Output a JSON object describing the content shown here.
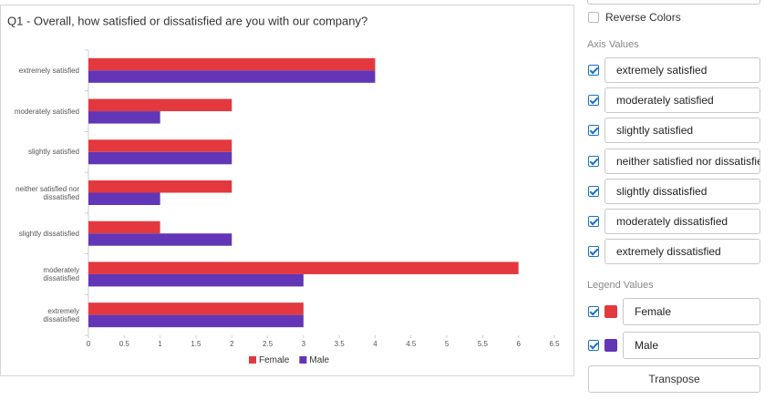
{
  "chart_data": {
    "type": "hbar",
    "title": "Q1 - Overall, how satisfied or dissatisfied are you with our company?",
    "categories": [
      "extremely satisfied",
      "moderately satisfied",
      "slightly satisfied",
      "neither satisfied nor dissatisfied",
      "slightly dissatisfied",
      "moderately dissatisfied",
      "extremely dissatisfied"
    ],
    "series": [
      {
        "name": "Female",
        "color": "#e3383e",
        "values": [
          4,
          2,
          2,
          2,
          1,
          6,
          3
        ]
      },
      {
        "name": "Male",
        "color": "#6236b6",
        "values": [
          4,
          1,
          2,
          1,
          2,
          3,
          3
        ]
      }
    ],
    "xlim": [
      0,
      6.5
    ],
    "xticks": [
      0,
      0.5,
      1,
      1.5,
      2,
      2.5,
      3,
      3.5,
      4,
      4.5,
      5,
      5.5,
      6,
      6.5
    ],
    "legend": "bottom"
  },
  "panel": {
    "reverse_colors": "Reverse Colors",
    "axis_values_heading": "Axis Values",
    "legend_values_heading": "Legend Values",
    "transpose_button": "Transpose"
  }
}
